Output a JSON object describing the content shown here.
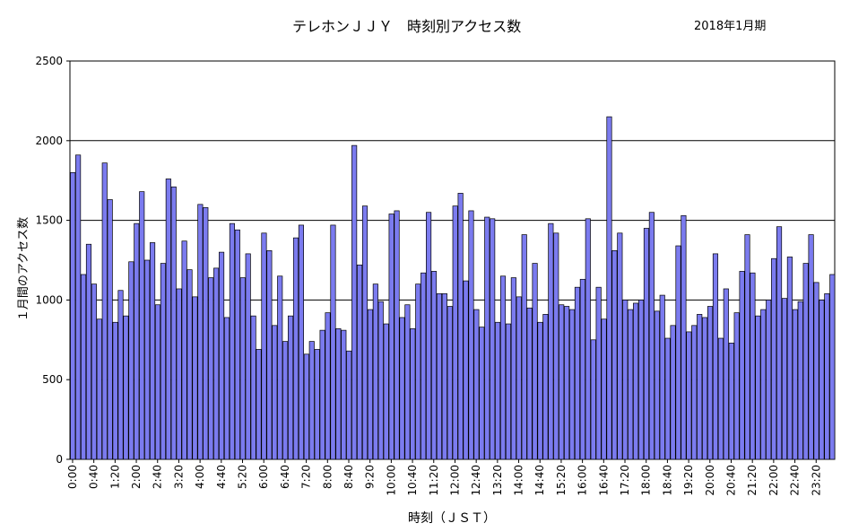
{
  "header": {
    "title": "テレホンＪＪＹ　時刻別アクセス数",
    "period": "2018年1月期"
  },
  "chart_data": {
    "type": "bar",
    "xlabel": "時刻（ＪＳＴ）",
    "ylabel": "１月間のアクセス数",
    "ylim": [
      0,
      2500
    ],
    "yticks": [
      0,
      500,
      1000,
      1500,
      2000,
      2500
    ],
    "grid": true,
    "bar_color": "#7b7bef",
    "x_tick_labels": [
      "0:00",
      "0:40",
      "1:20",
      "2:00",
      "2:40",
      "3:20",
      "4:00",
      "4:40",
      "5:20",
      "6:00",
      "6:40",
      "7:20",
      "8:00",
      "8:40",
      "9:20",
      "10:00",
      "10:40",
      "11:20",
      "12:00",
      "12:40",
      "13:20",
      "14:00",
      "14:40",
      "15:20",
      "16:00",
      "16:40",
      "17:20",
      "18:00",
      "18:40",
      "19:20",
      "20:00",
      "20:40",
      "21:20",
      "22:00",
      "22:40",
      "23:20"
    ],
    "x_tick_every": 4,
    "interval_minutes": 10,
    "values": [
      1800,
      1910,
      1160,
      1350,
      1100,
      880,
      1860,
      1630,
      860,
      1060,
      900,
      1240,
      1480,
      1680,
      1250,
      1360,
      970,
      1230,
      1760,
      1710,
      1070,
      1370,
      1190,
      1020,
      1600,
      1580,
      1140,
      1200,
      1300,
      890,
      1480,
      1440,
      1140,
      1290,
      900,
      690,
      1420,
      1310,
      840,
      1150,
      740,
      900,
      1390,
      1470,
      660,
      740,
      690,
      810,
      920,
      1470,
      820,
      810,
      680,
      1970,
      1220,
      1590,
      940,
      1100,
      990,
      850,
      1540,
      1560,
      890,
      970,
      820,
      1100,
      1170,
      1550,
      1180,
      1040,
      1040,
      960,
      1590,
      1670,
      1120,
      1560,
      940,
      830,
      1520,
      1510,
      860,
      1150,
      850,
      1140,
      1020,
      1410,
      950,
      1230,
      860,
      910,
      1480,
      1420,
      970,
      960,
      940,
      1080,
      1130,
      1510,
      750,
      1080,
      880,
      2150,
      1310,
      1420,
      1000,
      940,
      980,
      1000,
      1450,
      1550,
      930,
      1030,
      760,
      840,
      1340,
      1530,
      800,
      840,
      910,
      890,
      960,
      1290,
      760,
      1070,
      730,
      920,
      1180,
      1410,
      1170,
      900,
      940,
      1000,
      1260,
      1460,
      1010,
      1270,
      940,
      990,
      1230,
      1410,
      1110,
      1000,
      1040,
      1160
    ]
  }
}
